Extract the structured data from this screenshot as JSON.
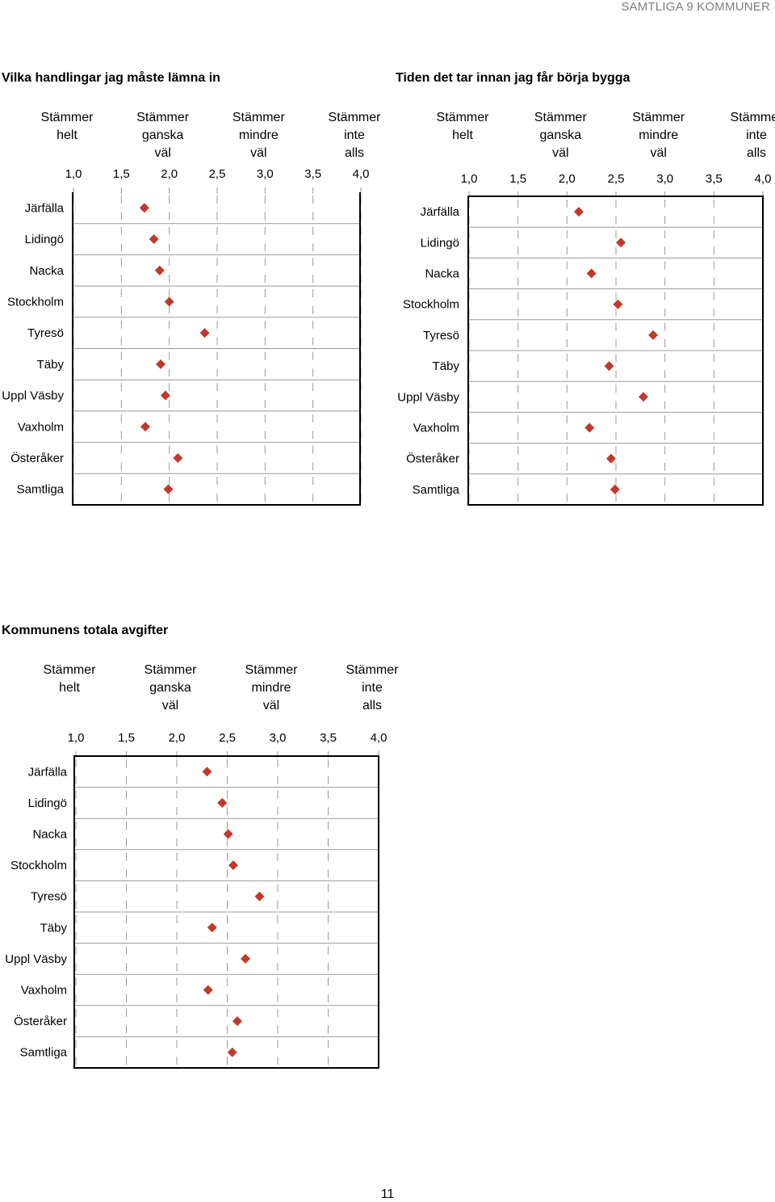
{
  "header": {
    "label": "SAMTLIGA 9 KOMMUNER"
  },
  "page_number": "11",
  "colors": {
    "marker": "#c0392b",
    "grid": "#999999",
    "axis_frame": "#000000"
  },
  "chart_data": [
    {
      "type": "scatter",
      "title": "Vilka handlingar jag måste lämna in",
      "xlim": [
        1.0,
        4.0
      ],
      "x_ticks": [
        "1,0",
        "1,5",
        "2,0",
        "2,5",
        "3,0",
        "3,5",
        "4,0"
      ],
      "scale_labels": [
        {
          "at": 1.0,
          "lines": [
            "Stämmer",
            "helt"
          ]
        },
        {
          "at": 2.0,
          "lines": [
            "Stämmer",
            "ganska",
            "väl"
          ]
        },
        {
          "at": 3.0,
          "lines": [
            "Stämmer",
            "mindre",
            "väl"
          ]
        },
        {
          "at": 4.0,
          "lines": [
            "Stämmer",
            "inte",
            "alls"
          ]
        }
      ],
      "categories": [
        "Järfälla",
        "Lidingö",
        "Nacka",
        "Stockholm",
        "Tyresö",
        "Täby",
        "Uppl Väsby",
        "Vaxholm",
        "Österåker",
        "Samtliga"
      ],
      "values": [
        1.74,
        1.84,
        1.9,
        2.0,
        2.37,
        1.91,
        1.96,
        1.75,
        2.09,
        1.99
      ]
    },
    {
      "type": "scatter",
      "title": "Tiden det tar innan jag får börja bygga",
      "xlim": [
        1.0,
        4.0
      ],
      "x_ticks": [
        "1,0",
        "1,5",
        "2,0",
        "2,5",
        "3,0",
        "3,5",
        "4,0"
      ],
      "scale_labels": [
        {
          "at": 1.0,
          "lines": [
            "Stämmer",
            "helt"
          ]
        },
        {
          "at": 2.0,
          "lines": [
            "Stämmer",
            "ganska",
            "väl"
          ]
        },
        {
          "at": 3.0,
          "lines": [
            "Stämmer",
            "mindre",
            "väl"
          ]
        },
        {
          "at": 4.0,
          "lines": [
            "Stämmer",
            "inte",
            "alls"
          ]
        }
      ],
      "categories": [
        "Järfälla",
        "Lidingö",
        "Nacka",
        "Stockholm",
        "Tyresö",
        "Täby",
        "Uppl Väsby",
        "Vaxholm",
        "Österåker",
        "Samtliga"
      ],
      "values": [
        2.12,
        2.55,
        2.25,
        2.52,
        2.88,
        2.43,
        2.78,
        2.23,
        2.45,
        2.49
      ]
    },
    {
      "type": "scatter",
      "title": "Kommunens totala avgifter",
      "xlim": [
        1.0,
        4.0
      ],
      "x_ticks": [
        "1,0",
        "1,5",
        "2,0",
        "2,5",
        "3,0",
        "3,5",
        "4,0"
      ],
      "scale_labels": [
        {
          "at": 1.0,
          "lines": [
            "Stämmer",
            "helt"
          ]
        },
        {
          "at": 2.0,
          "lines": [
            "Stämmer",
            "ganska",
            "väl"
          ]
        },
        {
          "at": 3.0,
          "lines": [
            "Stämmer",
            "mindre",
            "väl"
          ]
        },
        {
          "at": 4.0,
          "lines": [
            "Stämmer",
            "inte",
            "alls"
          ]
        }
      ],
      "categories": [
        "Järfälla",
        "Lidingö",
        "Nacka",
        "Stockholm",
        "Tyresö",
        "Täby",
        "Uppl Väsby",
        "Vaxholm",
        "Österåker",
        "Samtliga"
      ],
      "values": [
        2.3,
        2.45,
        2.51,
        2.56,
        2.82,
        2.35,
        2.68,
        2.31,
        2.6,
        2.55
      ]
    }
  ]
}
